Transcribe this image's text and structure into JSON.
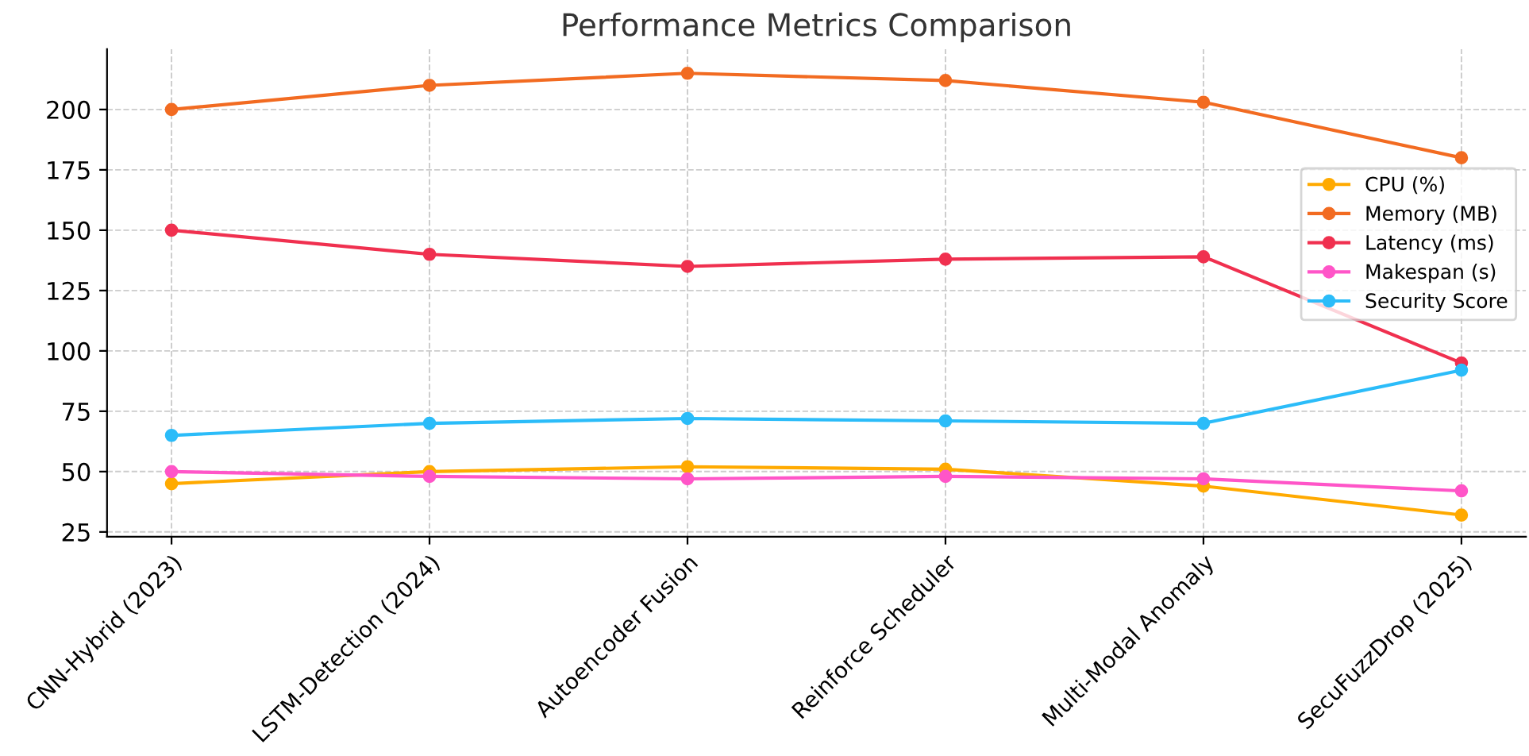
{
  "chart_data": {
    "type": "line",
    "title": "Performance Metrics Comparison",
    "categories": [
      "CNN-Hybrid (2023)",
      "LSTM-Detection (2024)",
      "Autoencoder Fusion",
      "Reinforce Scheduler",
      "Multi-Modal Anomaly",
      "SecuFuzzDrop (2025)"
    ],
    "series": [
      {
        "name": "CPU (%)",
        "color": "#ffaa00",
        "values": [
          45,
          50,
          52,
          51,
          44,
          32
        ]
      },
      {
        "name": "Memory (MB)",
        "color": "#f26b21",
        "values": [
          200,
          210,
          215,
          212,
          203,
          180
        ]
      },
      {
        "name": "Latency (ms)",
        "color": "#f0304f",
        "values": [
          150,
          140,
          135,
          138,
          139,
          95
        ]
      },
      {
        "name": "Makespan (s)",
        "color": "#ff55c8",
        "values": [
          50,
          48,
          47,
          48,
          47,
          42
        ]
      },
      {
        "name": "Security Score",
        "color": "#2bbcf9",
        "values": [
          65,
          70,
          72,
          71,
          70,
          92
        ]
      }
    ],
    "ylim": [
      23,
      225
    ],
    "yticks": [
      25,
      50,
      75,
      100,
      125,
      150,
      175,
      200
    ],
    "grid": true,
    "legend": "center right",
    "marker": "circle",
    "line_style": "solid"
  }
}
